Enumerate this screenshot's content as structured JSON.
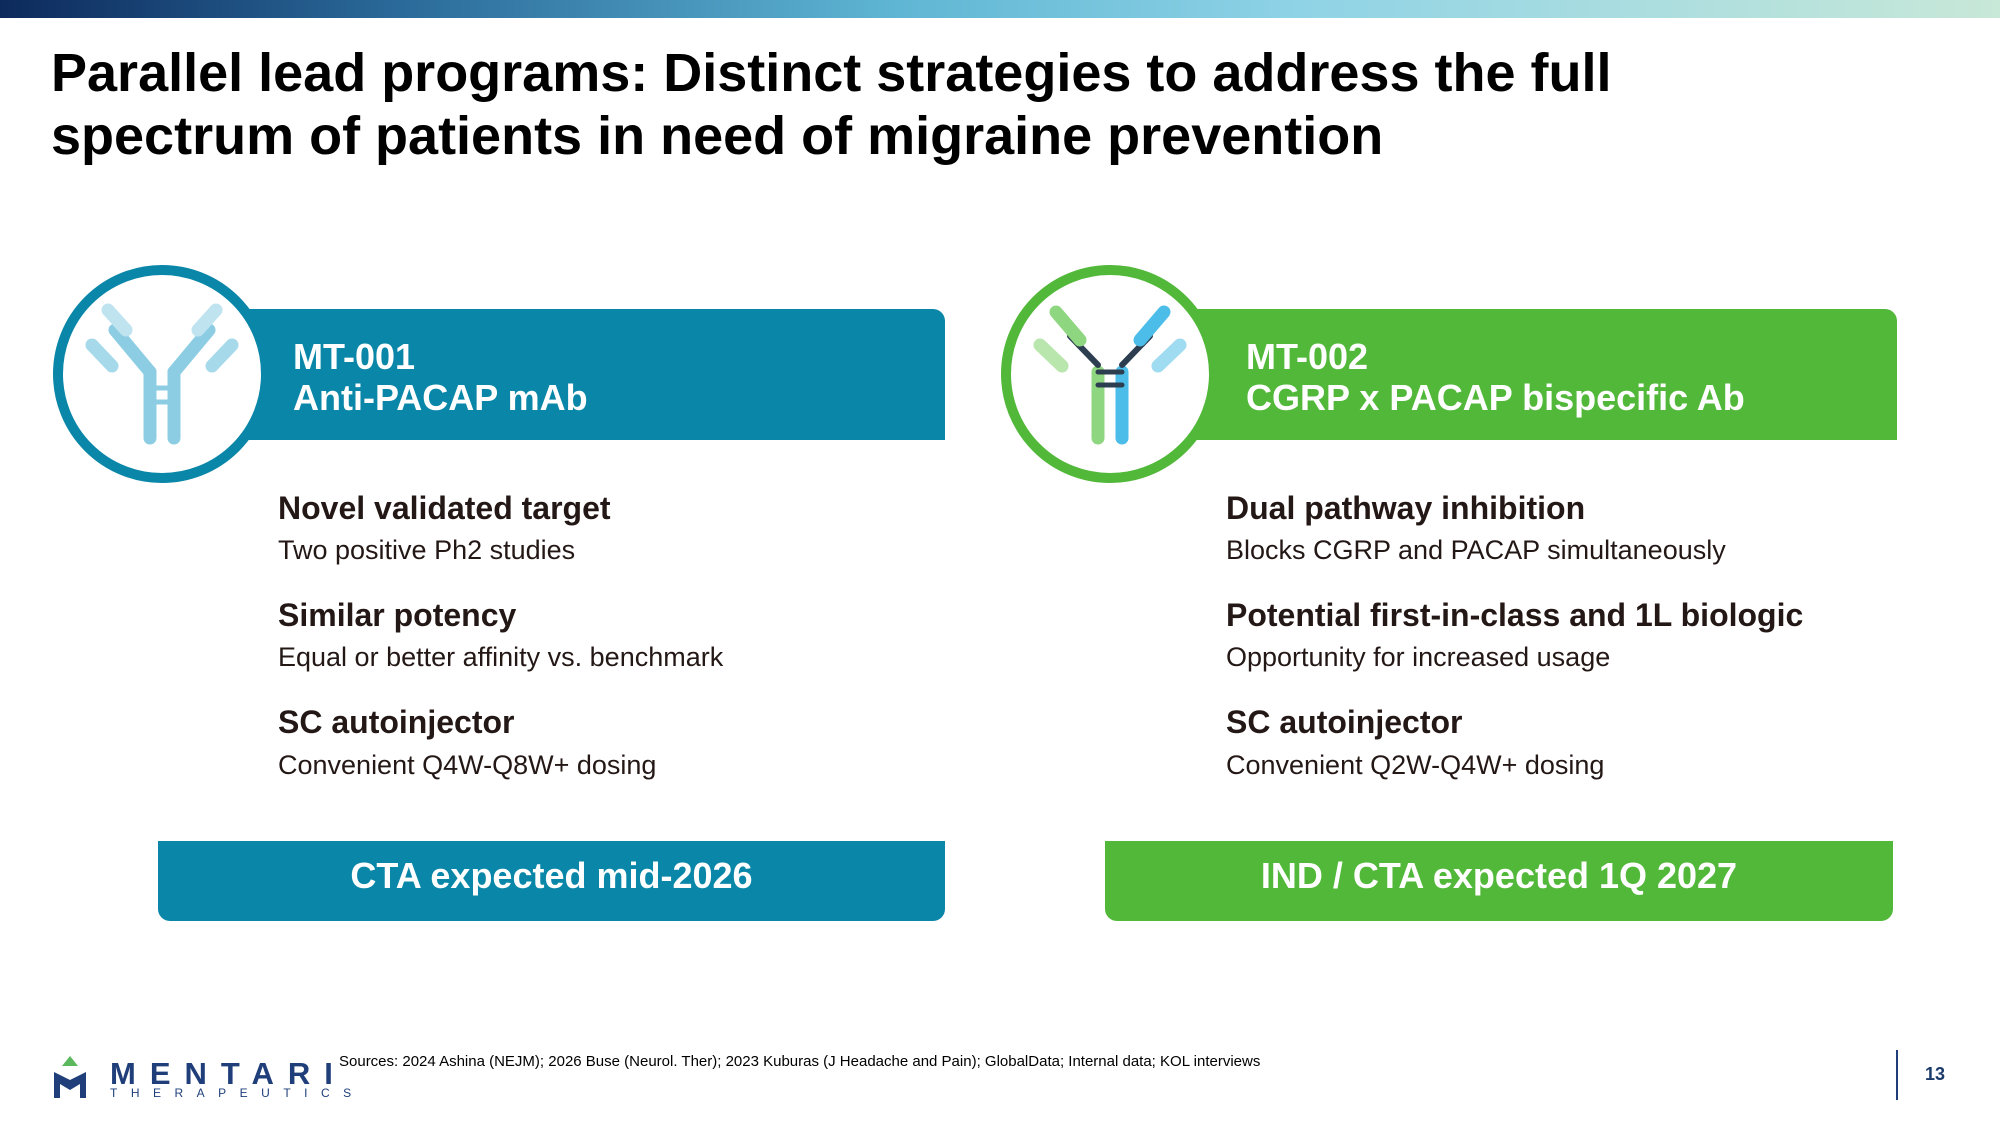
{
  "title": "Parallel lead programs: Distinct strategies to address the full spectrum of patients in need of migraine prevention",
  "cards": [
    {
      "code": "MT-001",
      "name": "Anti-PACAP mAb",
      "bullets": [
        {
          "heading": "Novel validated target",
          "text": "Two positive Ph2 studies"
        },
        {
          "heading": "Similar potency",
          "text": "Equal or better affinity vs. benchmark"
        },
        {
          "heading": "SC autoinjector",
          "text": "Convenient Q4W-Q8W+ dosing"
        }
      ],
      "milestone": "CTA expected mid-2026"
    },
    {
      "code": "MT-002",
      "name": "CGRP x PACAP bispecific Ab",
      "bullets": [
        {
          "heading": "Dual pathway inhibition",
          "text": "Blocks CGRP and PACAP simultaneously"
        },
        {
          "heading": "Potential first-in-class and 1L biologic",
          "text": "Opportunity for increased usage"
        },
        {
          "heading": "SC autoinjector",
          "text": "Convenient Q2W-Q4W+ dosing"
        }
      ],
      "milestone": "IND / CTA expected 1Q 2027"
    }
  ],
  "footer": {
    "logo_name": "MENTARI",
    "logo_tagline": "THERAPEUTICS",
    "sources": "Sources: 2024 Ashina (NEJM); 2026 Buse (Neurol. Ther); 2023 Kuburas (J Headache and Pain); GlobalData; Internal data; KOL interviews",
    "page_number": "13"
  }
}
